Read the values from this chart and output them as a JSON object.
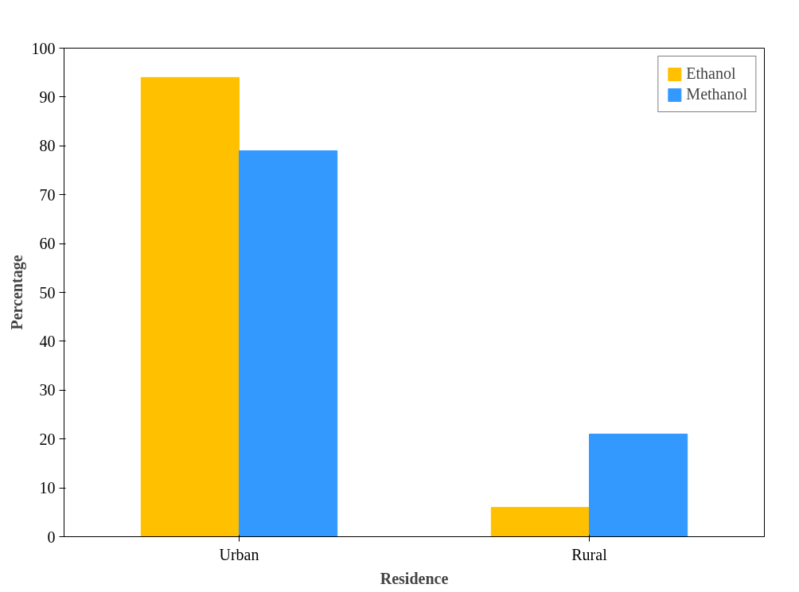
{
  "chart_data": {
    "type": "bar",
    "xlabel": "Residence",
    "ylabel": "Percentage",
    "categories": [
      "Urban",
      "Rural"
    ],
    "series": [
      {
        "name": "Ethanol",
        "color": "#ffc000",
        "values": [
          94,
          6
        ]
      },
      {
        "name": "Methanol",
        "color": "#3399ff",
        "values": [
          79,
          21
        ]
      }
    ],
    "ylim": [
      0,
      100
    ],
    "yticks": [
      0,
      10,
      20,
      30,
      40,
      50,
      60,
      70,
      80,
      90,
      100
    ],
    "grid": false,
    "legend": "top right"
  }
}
